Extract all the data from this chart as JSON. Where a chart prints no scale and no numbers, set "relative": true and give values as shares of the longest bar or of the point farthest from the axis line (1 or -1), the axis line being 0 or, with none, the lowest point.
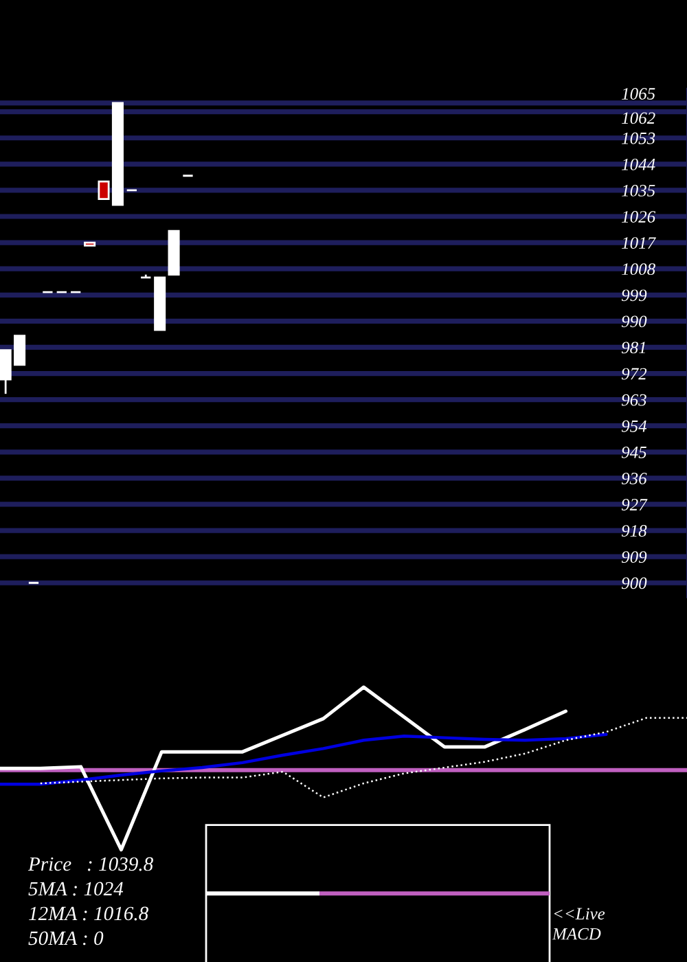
{
  "chart_data": [
    {
      "type": "candlestick",
      "categories": [
        null,
        null,
        null,
        null,
        null,
        null,
        null,
        null,
        null,
        null,
        null,
        null,
        null,
        null,
        null,
        null,
        null,
        null,
        null,
        null,
        null,
        null,
        null,
        null,
        null,
        null,
        null,
        null,
        null,
        null,
        null,
        null,
        null,
        null,
        null,
        null,
        null,
        null,
        null,
        null,
        null,
        null,
        null,
        null,
        null,
        null,
        null,
        null,
        null
      ],
      "ohlc": [
        [
          970,
          980,
          965,
          980
        ],
        [
          975,
          985,
          975,
          985
        ],
        [
          900,
          900,
          900,
          900
        ],
        [
          1000,
          1000,
          1000,
          1000
        ],
        [
          1000,
          1000,
          1000,
          1000
        ],
        [
          1000,
          1000,
          1000,
          1000
        ],
        [
          1017,
          1017,
          1016,
          1016
        ],
        [
          1038,
          1038,
          1032,
          1032
        ],
        [
          1030,
          1065,
          1030,
          1065
        ],
        [
          1035,
          1035,
          1035,
          1035
        ],
        [
          1005,
          1006,
          1005,
          1005
        ],
        [
          987,
          1005,
          987,
          1005
        ],
        [
          1006,
          1021,
          1006,
          1021
        ],
        [
          1040,
          1040,
          1040,
          1040
        ],
        null,
        null,
        null,
        null,
        null,
        null,
        null,
        null,
        null,
        null,
        null,
        null,
        null,
        null,
        null,
        null,
        null,
        null,
        null,
        null,
        null,
        null,
        null,
        null,
        null,
        null,
        null,
        null,
        null,
        null,
        null,
        null,
        null,
        null,
        null
      ],
      "colors": [
        "#ffffff",
        "#ffffff",
        "#ffffff",
        "#ffffff",
        "#ffffff",
        "#ffffff",
        "#cc0000",
        "#cc0000",
        "#ffffff",
        "#ffffff",
        "#ffffff",
        "#ffffff",
        "#ffffff",
        "#ffffff",
        null,
        null,
        null,
        null,
        null,
        null,
        null,
        null,
        null,
        null,
        null,
        null,
        null,
        null,
        null,
        null,
        null,
        null,
        null,
        null,
        null,
        null,
        null,
        null,
        null,
        null,
        null,
        null,
        null,
        null,
        null,
        null,
        null,
        null,
        null
      ],
      "ylim": [
        895,
        1070
      ],
      "yticks": [
        900,
        909,
        918,
        927,
        936,
        945,
        954,
        963,
        972,
        981,
        990,
        999,
        1008,
        1017,
        1026,
        1035,
        1044,
        1053,
        1062,
        1065
      ],
      "grid": "y",
      "tick_labels": "y"
    },
    {
      "type": "line",
      "relative": true,
      "categories": [
        null,
        null,
        null,
        null,
        null,
        null,
        null,
        null,
        null,
        null,
        null,
        null,
        null,
        null,
        null,
        null,
        null,
        null
      ],
      "series": [
        {
          "color": "#ffffff",
          "values": [
            0.02,
            0.02,
            0.04,
            -0.96,
            0.22,
            0.22,
            0.22,
            0.42,
            0.62,
            1,
            0.64,
            0.28,
            0.28,
            0.49,
            0.71,
            null,
            null,
            null
          ]
        },
        {
          "color": "#0000e0",
          "values": [
            -0.17,
            -0.17,
            -0.12,
            -0.06,
            -0.01,
            0.03,
            0.09,
            0.18,
            0.26,
            0.36,
            0.41,
            0.39,
            0.37,
            0.36,
            0.38,
            0.43,
            null,
            null
          ]
        },
        {
          "color": "#ffffff",
          "line_style": "dotted",
          "values": [
            null,
            -0.16,
            -0.14,
            -0.12,
            -0.1,
            -0.09,
            -0.09,
            -0.02,
            -0.33,
            -0.16,
            -0.04,
            0.03,
            0.1,
            0.2,
            0.36,
            0.46,
            0.63,
            0.63
          ]
        }
      ],
      "ref_lines": [
        {
          "axis": "y",
          "value": 0,
          "color": "#c060c0"
        }
      ],
      "tick_labels": false,
      "annotations": [
        "Price   : 1039.8",
        "5MA : 1024",
        "12MA : 1016.8",
        "50MA : 0"
      ]
    },
    {
      "type": "bar",
      "orientation": "horizontal",
      "stacked": true,
      "relative": true,
      "categories": [
        null
      ],
      "series": [
        {
          "color": "#ffffff",
          "values": [
            0.33
          ]
        },
        {
          "color": "#c060c0",
          "values": [
            0.67
          ]
        }
      ],
      "tick_labels": false,
      "annotations": [
        "<<Live",
        "MACD"
      ]
    }
  ]
}
